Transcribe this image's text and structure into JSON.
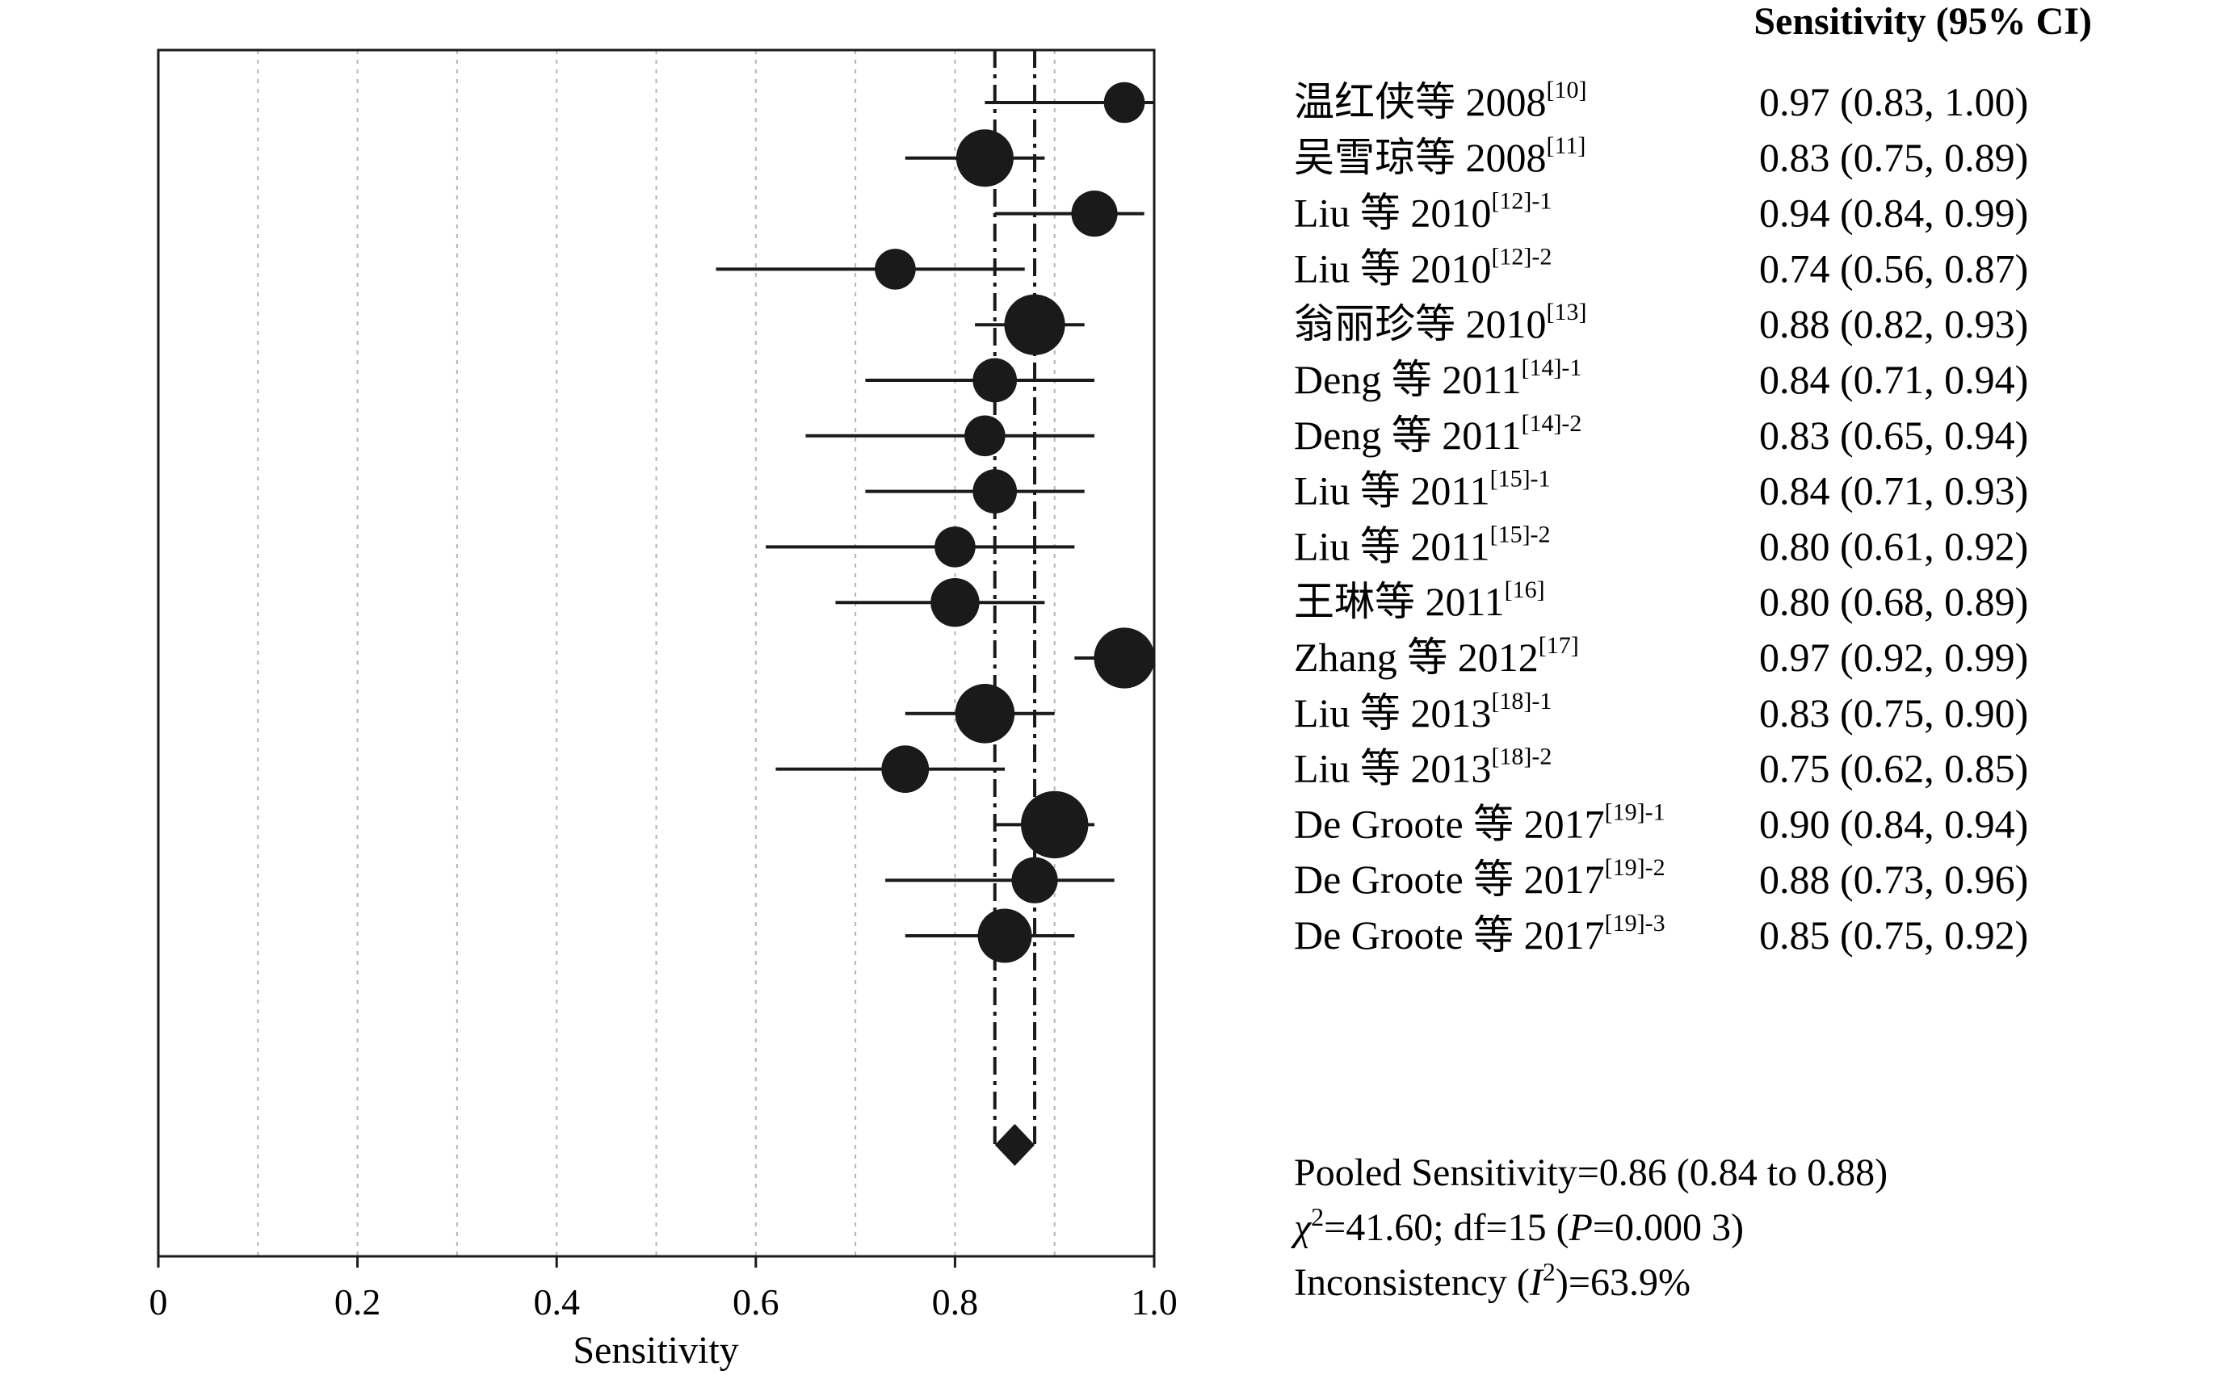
{
  "chart_data": {
    "type": "forest",
    "xlabel": "Sensitivity",
    "xlim": [
      0,
      1.0
    ],
    "xticks": [
      {
        "value": 0,
        "label": "0"
      },
      {
        "value": 0.2,
        "label": "0.2"
      },
      {
        "value": 0.4,
        "label": "0.4"
      },
      {
        "value": 0.6,
        "label": "0.6"
      },
      {
        "value": 0.8,
        "label": "0.8"
      },
      {
        "value": 1.0,
        "label": "1.0"
      }
    ],
    "grid": "vertical-dotted",
    "column_header": "Sensitivity (95% CI)",
    "pooled": {
      "estimate": 0.86,
      "lower": 0.84,
      "upper": 0.88,
      "line1": "Pooled Sensitivity=0.86 (0.84 to 0.88)",
      "chi_symbol": "χ",
      "chi_text": "=41.60; df=15 (",
      "p_symbol": "P",
      "p_text": "=0.000 3)",
      "inc_prefix": "Inconsistency (",
      "i_symbol": "I",
      "inc_suffix": ")=63.9%"
    },
    "studies": [
      {
        "name": "温红侠等 2008",
        "ref": "[10]",
        "value": 0.97,
        "lower": 0.83,
        "upper": 1.0,
        "ci_text": "0.97 (0.83, 1.00)",
        "weight": 3.0
      },
      {
        "name": "吴雪琼等 2008",
        "ref": "[11]",
        "value": 0.83,
        "lower": 0.75,
        "upper": 0.89,
        "ci_text": "0.83 (0.75, 0.89)",
        "weight": 5.5
      },
      {
        "name": "Liu 等 2010",
        "ref": "[12]-1",
        "value": 0.94,
        "lower": 0.84,
        "upper": 0.99,
        "ci_text": "0.94 (0.84, 0.99)",
        "weight": 3.8
      },
      {
        "name": "Liu 等 2010",
        "ref": "[12]-2",
        "value": 0.74,
        "lower": 0.56,
        "upper": 0.87,
        "ci_text": "0.74 (0.56, 0.87)",
        "weight": 3.0
      },
      {
        "name": "翁丽珍等 2010",
        "ref": "[13]",
        "value": 0.88,
        "lower": 0.82,
        "upper": 0.93,
        "ci_text": "0.88 (0.82, 0.93)",
        "weight": 6.0
      },
      {
        "name": "Deng 等 2011",
        "ref": "[14]-1",
        "value": 0.84,
        "lower": 0.71,
        "upper": 0.94,
        "ci_text": "0.84 (0.71, 0.94)",
        "weight": 3.5
      },
      {
        "name": "Deng 等 2011",
        "ref": "[14]-2",
        "value": 0.83,
        "lower": 0.65,
        "upper": 0.94,
        "ci_text": "0.83 (0.65, 0.94)",
        "weight": 3.0
      },
      {
        "name": "Liu 等 2011",
        "ref": "[15]-1",
        "value": 0.84,
        "lower": 0.71,
        "upper": 0.93,
        "ci_text": "0.84 (0.71, 0.93)",
        "weight": 3.5
      },
      {
        "name": "Liu 等 2011",
        "ref": "[15]-2",
        "value": 0.8,
        "lower": 0.61,
        "upper": 0.92,
        "ci_text": "0.80 (0.61, 0.92)",
        "weight": 3.0
      },
      {
        "name": "王琳等 2011",
        "ref": "[16]",
        "value": 0.8,
        "lower": 0.68,
        "upper": 0.89,
        "ci_text": "0.80 (0.68, 0.89)",
        "weight": 4.2
      },
      {
        "name": "Zhang 等 2012",
        "ref": "[17]",
        "value": 0.97,
        "lower": 0.92,
        "upper": 0.99,
        "ci_text": "0.97 (0.92, 0.99)",
        "weight": 6.0
      },
      {
        "name": "Liu 等 2013",
        "ref": "[18]-1",
        "value": 0.83,
        "lower": 0.75,
        "upper": 0.9,
        "ci_text": "0.83 (0.75, 0.90)",
        "weight": 5.8
      },
      {
        "name": "Liu 等 2013",
        "ref": "[18]-2",
        "value": 0.75,
        "lower": 0.62,
        "upper": 0.85,
        "ci_text": "0.75 (0.62, 0.85)",
        "weight": 4.0
      },
      {
        "name": "De Groote 等 2017",
        "ref": "[19]-1",
        "value": 0.9,
        "lower": 0.84,
        "upper": 0.94,
        "ci_text": "0.90 (0.84, 0.94)",
        "weight": 7.0
      },
      {
        "name": "De Groote 等 2017",
        "ref": "[19]-2",
        "value": 0.88,
        "lower": 0.73,
        "upper": 0.96,
        "ci_text": "0.88 (0.73, 0.96)",
        "weight": 3.8
      },
      {
        "name": "De Groote 等 2017",
        "ref": "[19]-3",
        "value": 0.85,
        "lower": 0.75,
        "upper": 0.92,
        "ci_text": "0.85 (0.75, 0.92)",
        "weight": 5.0
      }
    ]
  }
}
